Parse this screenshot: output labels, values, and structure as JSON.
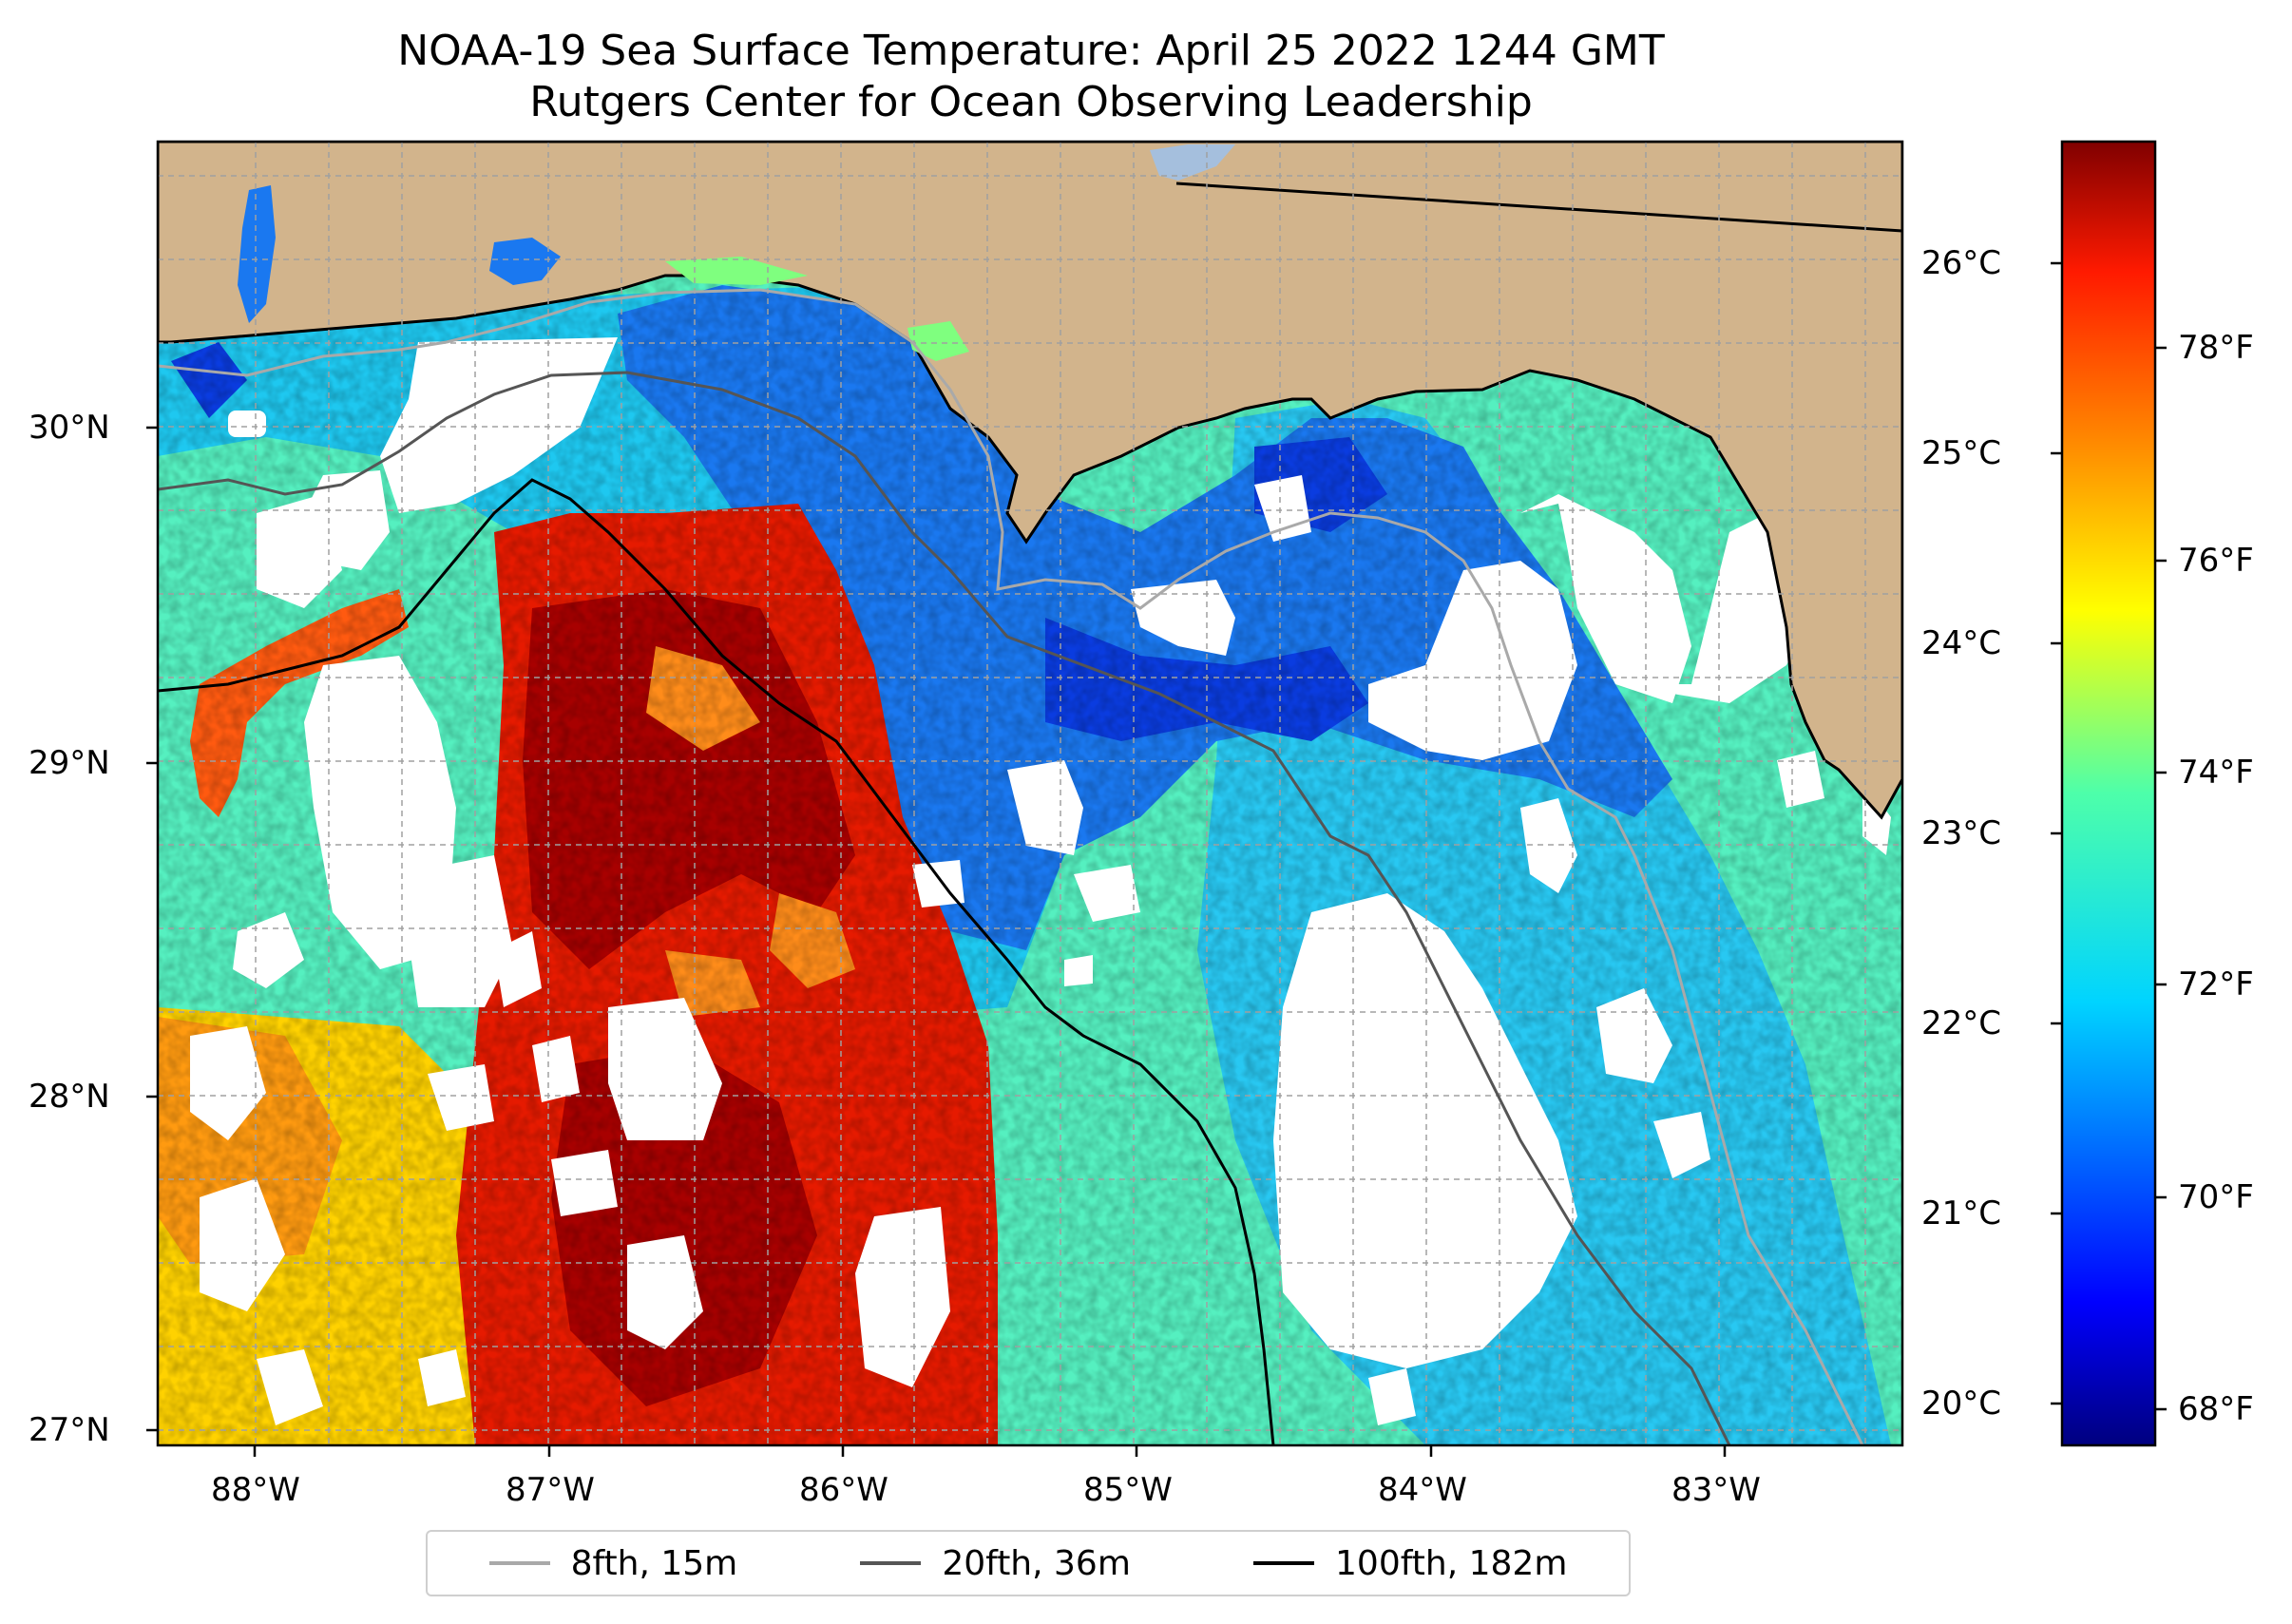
{
  "title": {
    "line1": "NOAA-19 Sea Surface Temperature: April 25 2022 1244 GMT",
    "line2": "Rutgers Center for Ocean Observing Leadership"
  },
  "map": {
    "lon_labels": [
      "88°W",
      "87°W",
      "86°W",
      "85°W",
      "84°W",
      "83°W"
    ],
    "lat_labels": [
      "30°N",
      "29°N",
      "28°N",
      "27°N"
    ],
    "land_color": "#d2b48c",
    "lake_color": "#a5bfdd"
  },
  "colorbar": {
    "celsius_labels": [
      "26°C",
      "25°C",
      "24°C",
      "23°C",
      "22°C",
      "21°C",
      "20°C"
    ],
    "fahrenheit_labels": [
      "78°F",
      "76°F",
      "74°F",
      "72°F",
      "70°F",
      "68°F"
    ],
    "colormap": [
      "#00007f",
      "#0000ff",
      "#007fff",
      "#00ffff",
      "#7fff7f",
      "#ffff00",
      "#ff7f00",
      "#ff0000",
      "#7f0000"
    ]
  },
  "legend": [
    {
      "label": "8fth, 15m",
      "color": "#a9a9a9"
    },
    {
      "label": "20fth, 36m",
      "color": "#555555"
    },
    {
      "label": "100fth, 182m",
      "color": "#000000"
    }
  ]
}
